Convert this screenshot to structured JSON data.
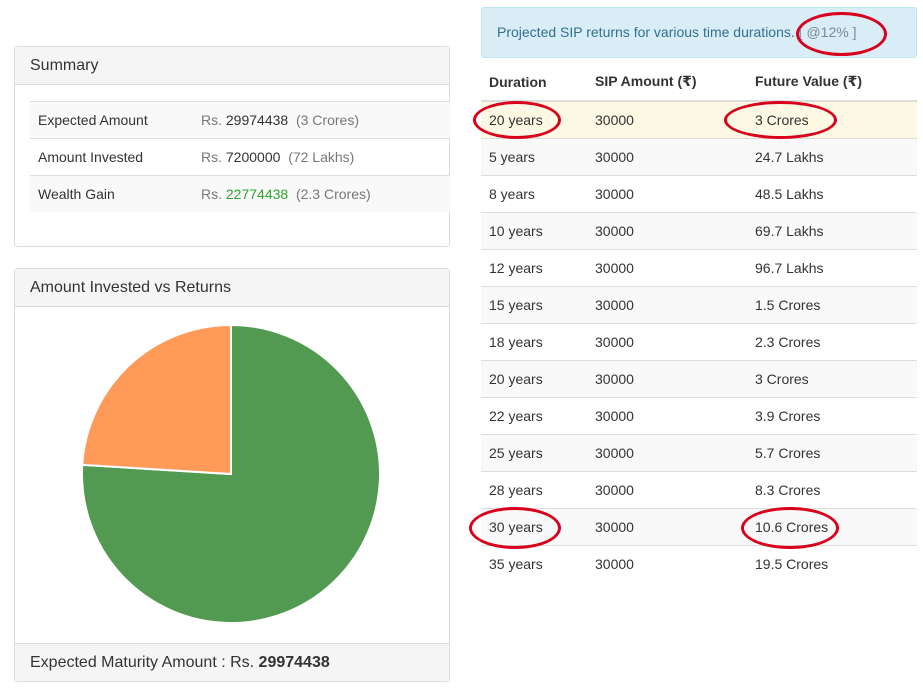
{
  "summary": {
    "title": "Summary",
    "rows": [
      {
        "label": "Expected Amount",
        "prefix": "Rs.",
        "value": "29974438",
        "note": "(3 Crores)",
        "value_color": "#333333"
      },
      {
        "label": "Amount Invested",
        "prefix": "Rs.",
        "value": "7200000",
        "note": "(72 Lakhs)",
        "value_color": "#333333"
      },
      {
        "label": "Wealth Gain",
        "prefix": "Rs.",
        "value": "22774438",
        "note": "(2.3 Crores)",
        "value_color": "#2ea52e"
      }
    ]
  },
  "chart_panel": {
    "title": "Amount Invested vs Returns",
    "footer_label": "Expected Maturity Amount : Rs.",
    "footer_value": "29974438"
  },
  "chart_data": {
    "type": "pie",
    "title": "",
    "slices": [
      {
        "value": 22774438,
        "color": "#529a52"
      },
      {
        "value": 7200000,
        "color": "#ff9a59"
      }
    ]
  },
  "projection": {
    "header_text": "Projected SIP returns for various time durations.",
    "rate_text": "[ @12% ]",
    "columns": [
      "Duration",
      "SIP Amount (₹)",
      "Future Value (₹)"
    ],
    "rows": [
      {
        "duration": "20 years",
        "sip": "30000",
        "future": "3 Crores",
        "highlight": true
      },
      {
        "duration": "5 years",
        "sip": "30000",
        "future": "24.7 Lakhs"
      },
      {
        "duration": "8 years",
        "sip": "30000",
        "future": "48.5 Lakhs"
      },
      {
        "duration": "10 years",
        "sip": "30000",
        "future": "69.7 Lakhs"
      },
      {
        "duration": "12 years",
        "sip": "30000",
        "future": "96.7 Lakhs"
      },
      {
        "duration": "15 years",
        "sip": "30000",
        "future": "1.5 Crores"
      },
      {
        "duration": "18 years",
        "sip": "30000",
        "future": "2.3 Crores"
      },
      {
        "duration": "20 years",
        "sip": "30000",
        "future": "3 Crores"
      },
      {
        "duration": "22 years",
        "sip": "30000",
        "future": "3.9 Crores"
      },
      {
        "duration": "25 years",
        "sip": "30000",
        "future": "5.7 Crores"
      },
      {
        "duration": "28 years",
        "sip": "30000",
        "future": "8.3 Crores"
      },
      {
        "duration": "30 years",
        "sip": "30000",
        "future": "10.6 Crores"
      },
      {
        "duration": "35 years",
        "sip": "30000",
        "future": "19.5 Crores"
      }
    ]
  },
  "annotation_color": "#d9001b"
}
